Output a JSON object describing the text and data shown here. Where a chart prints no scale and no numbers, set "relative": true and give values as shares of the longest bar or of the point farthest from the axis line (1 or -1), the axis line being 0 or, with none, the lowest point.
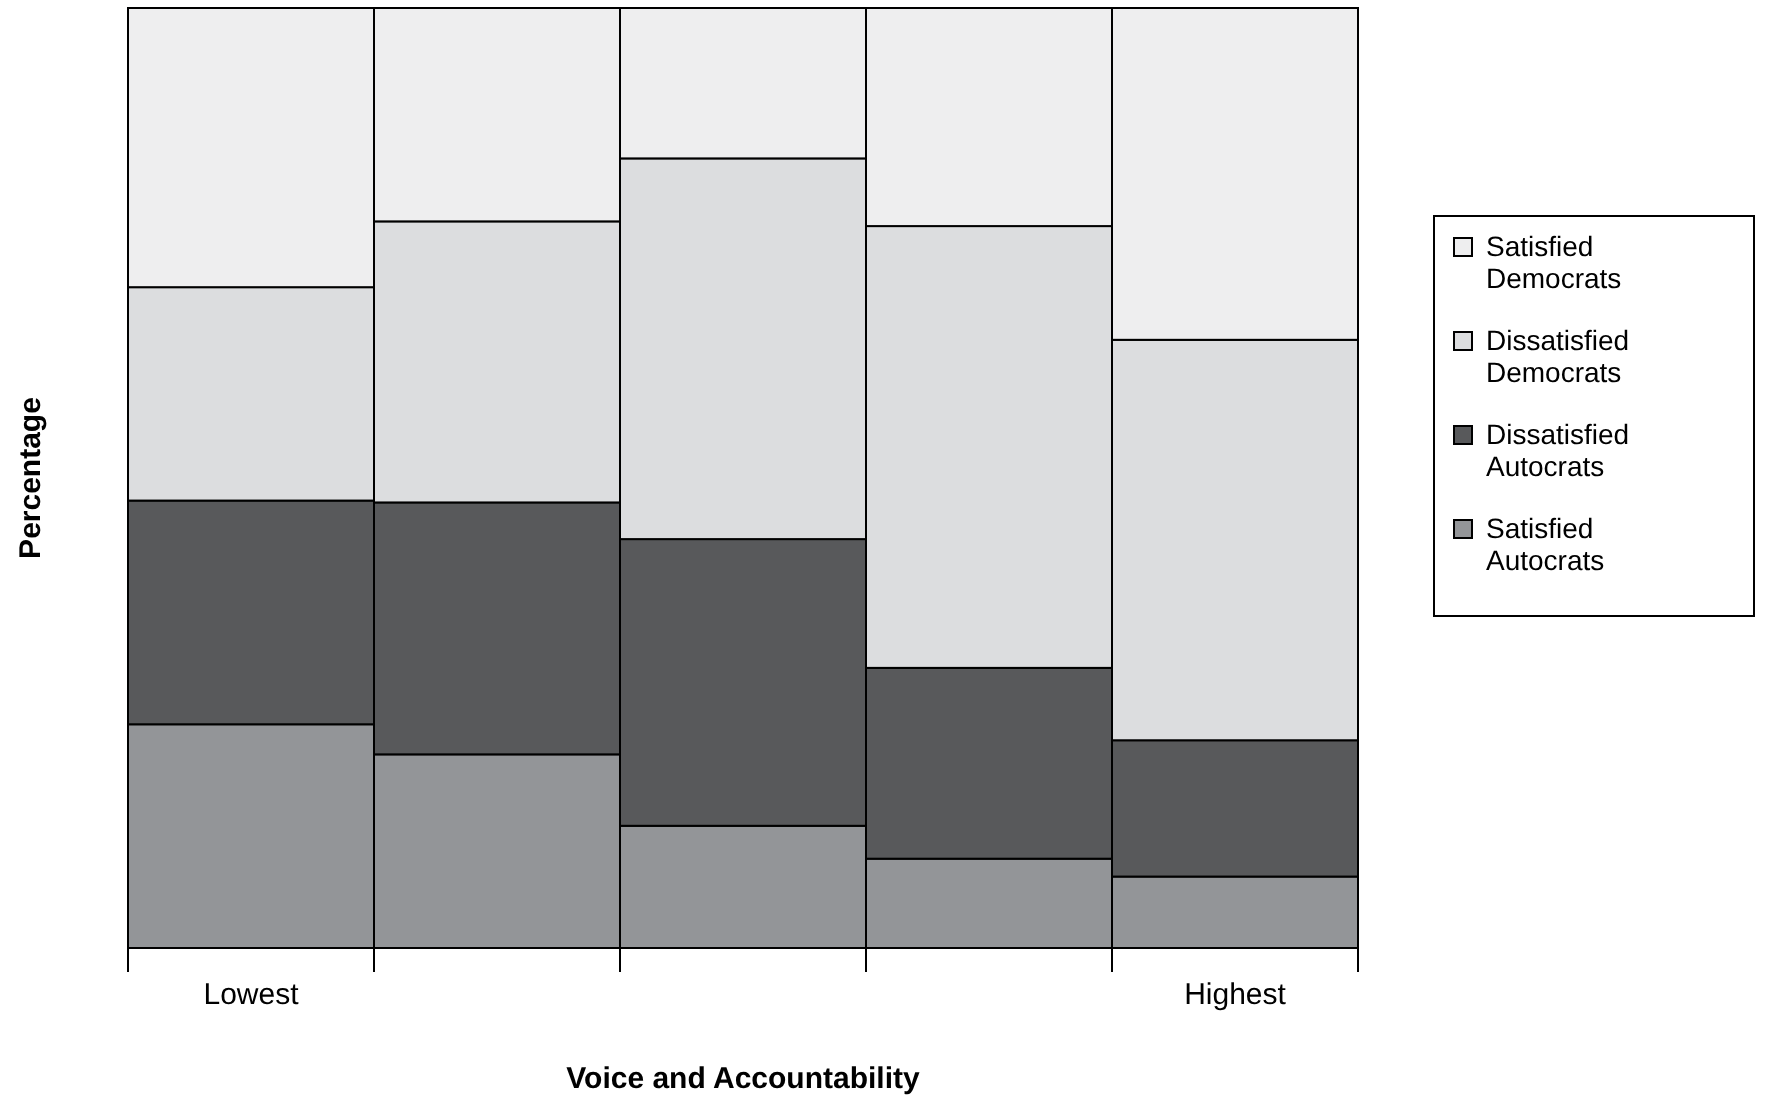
{
  "chart_data": {
    "type": "bar",
    "stacked": true,
    "relative": true,
    "xlabel": "Voice and Accountability",
    "ylabel": "Percentage",
    "legend": "right",
    "categories": [
      "Lowest",
      null,
      null,
      null,
      "Highest"
    ],
    "series": [
      {
        "name": "Satisfied Autocrats",
        "color": "#939598",
        "values": [
          0.238,
          0.206,
          0.13,
          0.095,
          0.076
        ]
      },
      {
        "name": "Dissatisfied Autocrats",
        "color": "#58595b",
        "values": [
          0.238,
          0.268,
          0.305,
          0.203,
          0.145
        ]
      },
      {
        "name": "Dissatisfied Democrats",
        "color": "#dcdddf",
        "values": [
          0.227,
          0.299,
          0.405,
          0.47,
          0.426
        ]
      },
      {
        "name": "Satisfied Democrats",
        "color": "#eeeeef",
        "values": [
          0.297,
          0.227,
          0.16,
          0.232,
          0.353
        ]
      }
    ]
  }
}
